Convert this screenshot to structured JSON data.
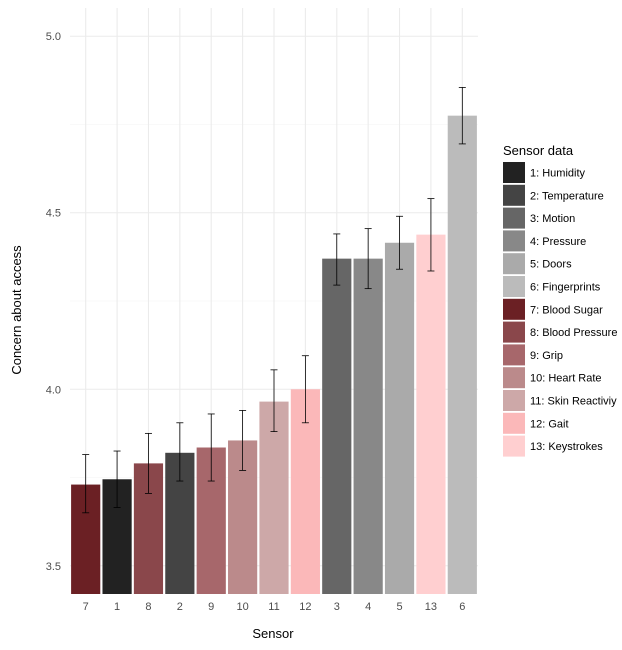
{
  "chart_data": {
    "type": "bar",
    "xlabel": "Sensor",
    "ylabel": "Concern about access",
    "ylim": [
      3.42,
      5.08
    ],
    "y_ticks": [
      "3.5",
      "4.0",
      "4.5",
      "5.0"
    ],
    "grid": true,
    "legend": {
      "title": "Sensor data",
      "placement": "right",
      "entries": [
        {
          "label": "1: Humidity",
          "color": "#222222"
        },
        {
          "label": "2: Temperature",
          "color": "#444444"
        },
        {
          "label": "3: Motion",
          "color": "#666666"
        },
        {
          "label": "4: Pressure",
          "color": "#888888"
        },
        {
          "label": "5: Doors",
          "color": "#aaaaaa"
        },
        {
          "label": "6: Fingerprints",
          "color": "#bbbbbb"
        },
        {
          "label": "7: Blood Sugar",
          "color": "#6b2024"
        },
        {
          "label": "8: Blood Pressure",
          "color": "#8a474b"
        },
        {
          "label": "9: Grip",
          "color": "#a7676b"
        },
        {
          "label": "10: Heart Rate",
          "color": "#bb8a8b"
        },
        {
          "label": "11: Skin Reactiviy",
          "color": "#cda8a8"
        },
        {
          "label": "12: Gait",
          "color": "#fbb8b9"
        },
        {
          "label": "13: Keystrokes",
          "color": "#ffcfd0"
        }
      ]
    },
    "categories": [
      "7",
      "1",
      "8",
      "2",
      "9",
      "10",
      "11",
      "12",
      "3",
      "4",
      "5",
      "13",
      "6"
    ],
    "values": [
      3.73,
      3.745,
      3.79,
      3.82,
      3.835,
      3.855,
      3.965,
      4.0,
      4.37,
      4.37,
      4.415,
      4.438,
      4.775
    ],
    "error_low": [
      3.65,
      3.665,
      3.705,
      3.74,
      3.74,
      3.77,
      3.88,
      3.905,
      4.295,
      4.285,
      4.34,
      4.335,
      4.695
    ],
    "error_high": [
      3.815,
      3.825,
      3.875,
      3.905,
      3.93,
      3.94,
      4.055,
      4.095,
      4.44,
      4.455,
      4.49,
      4.54,
      4.855
    ],
    "colors": [
      "#6b2024",
      "#222222",
      "#8a474b",
      "#444444",
      "#a7676b",
      "#bb8a8b",
      "#cda8a8",
      "#fbb8b9",
      "#666666",
      "#888888",
      "#aaaaaa",
      "#ffcfd0",
      "#bbbbbb"
    ]
  }
}
